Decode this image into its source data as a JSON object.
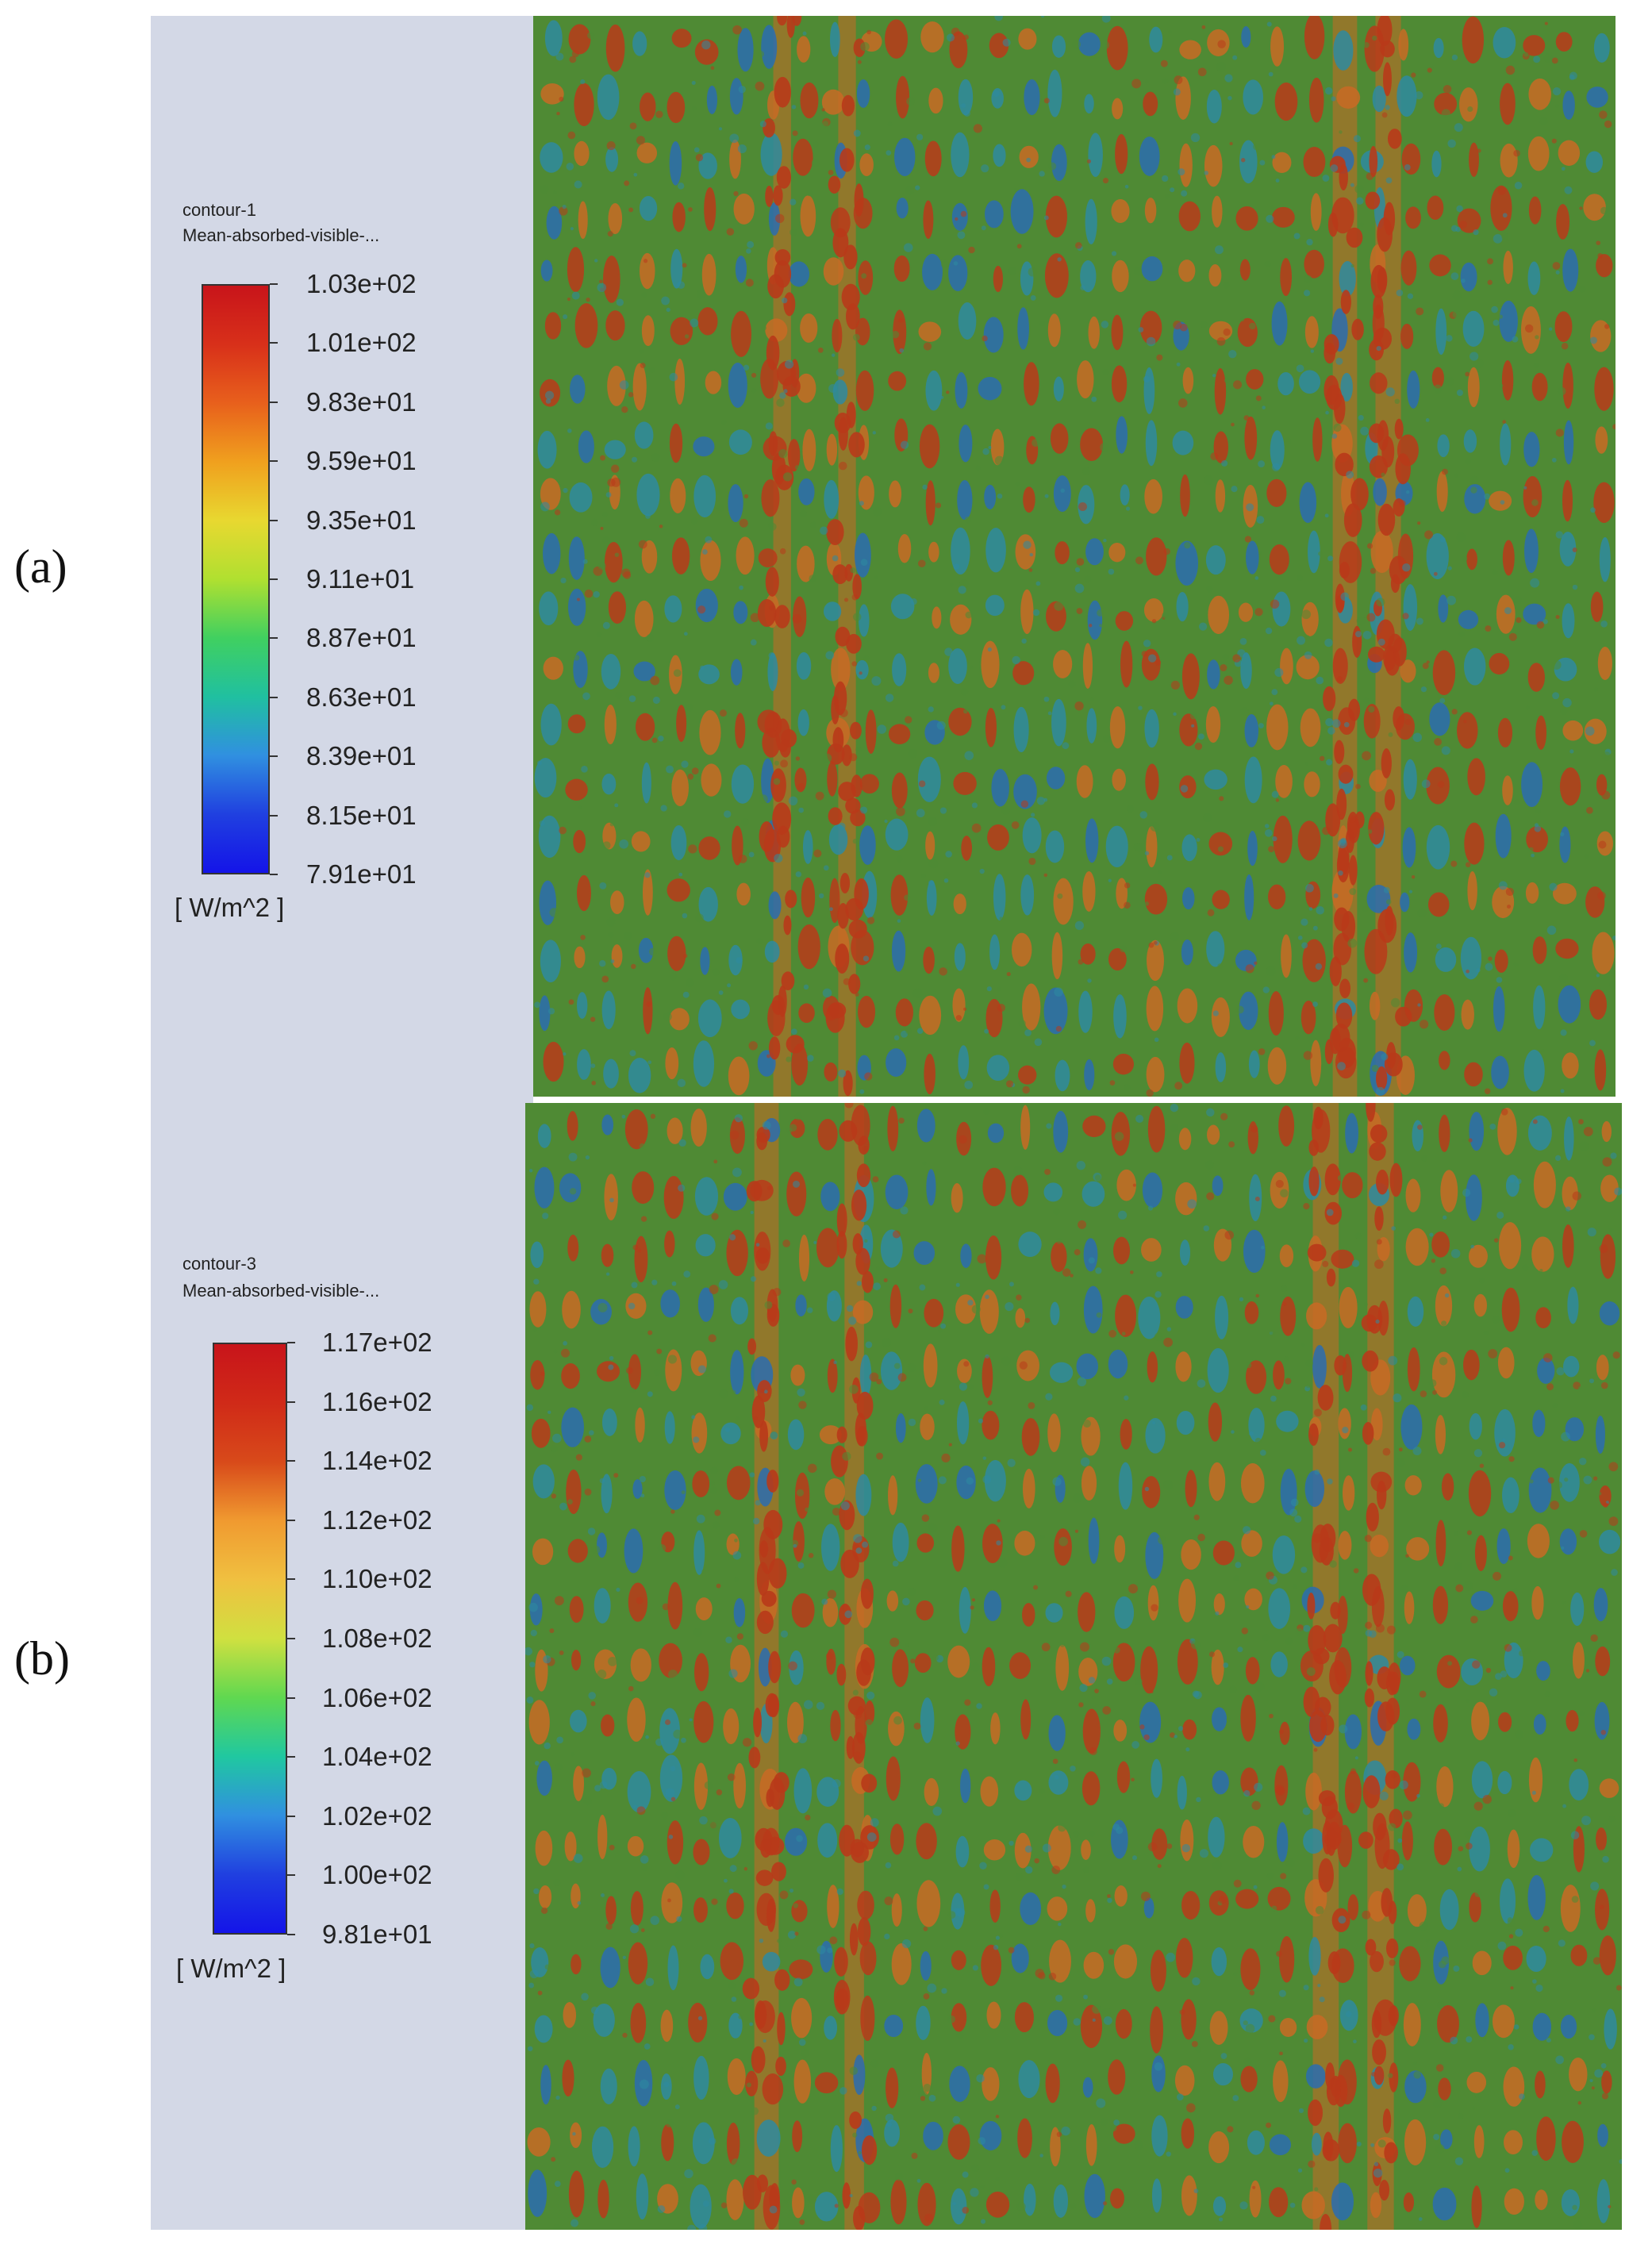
{
  "panels": [
    {
      "label": "(a)",
      "title": "contour-1",
      "variable": "Mean-absorbed-visible-...",
      "unit": "[ W/m^2 ]",
      "ticks": [
        "1.03e+02",
        "1.01e+02",
        "9.83e+01",
        "9.59e+01",
        "9.35e+01",
        "9.11e+01",
        "8.87e+01",
        "8.63e+01",
        "8.39e+01",
        "8.15e+01",
        "7.91e+01"
      ],
      "colorbar_colors": [
        "#c8141a",
        "#d8301a",
        "#e8601c",
        "#f0a01e",
        "#e8d830",
        "#b0e030",
        "#40d060",
        "#20c0a0",
        "#3090e0",
        "#2040e0",
        "#1414e8"
      ]
    },
    {
      "label": "(b)",
      "title": "contour-3",
      "variable": "Mean-absorbed-visible-...",
      "unit": "[ W/m^2 ]",
      "ticks": [
        "1.17e+02",
        "1.16e+02",
        "1.14e+02",
        "1.12e+02",
        "1.10e+02",
        "1.08e+02",
        "1.06e+02",
        "1.04e+02",
        "1.02e+02",
        "1.00e+02",
        "9.81e+01"
      ],
      "colorbar_colors": [
        "#c8141a",
        "#d02a18",
        "#d84a1a",
        "#f09a30",
        "#f0c040",
        "#d0e040",
        "#60d850",
        "#20c8a0",
        "#3090e0",
        "#2040e0",
        "#1414e8"
      ]
    }
  ],
  "contour_colors": {
    "base": "#4f8a34",
    "hot": "#b83a1a",
    "warm": "#c86a24",
    "cool": "#2e8aa0",
    "cold": "#2a6cb0"
  }
}
